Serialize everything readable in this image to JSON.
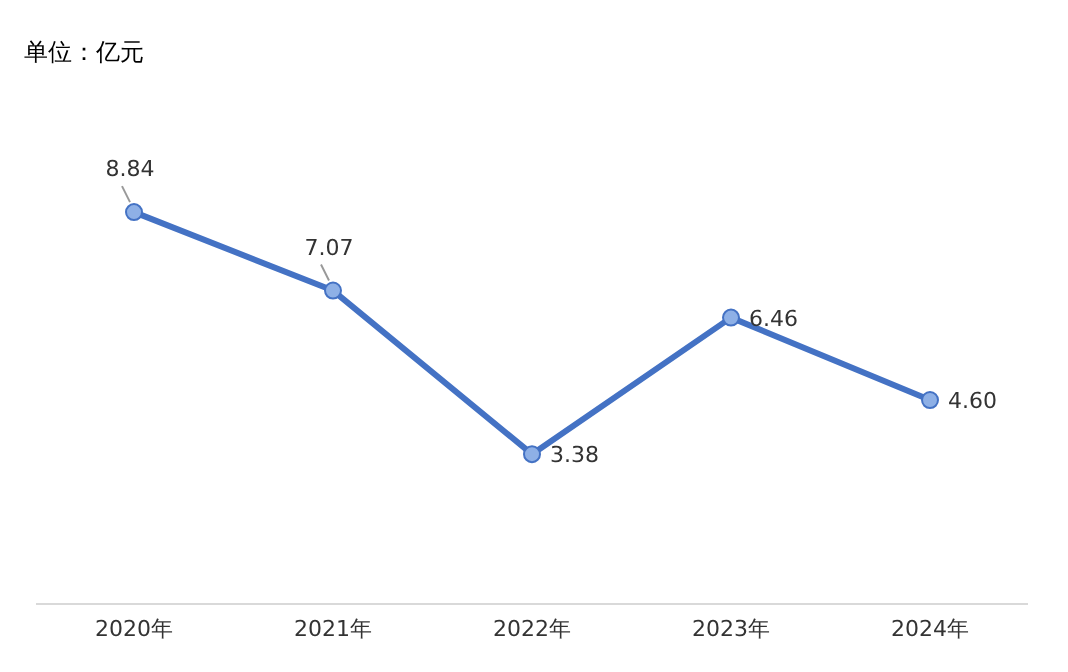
{
  "chart_data": {
    "type": "line",
    "annotations": [
      "单位：亿元"
    ],
    "categories": [
      "2020年",
      "2021年",
      "2022年",
      "2023年",
      "2024年"
    ],
    "series": [
      {
        "color": "#4472c4",
        "values": [
          8.84,
          7.07,
          3.38,
          6.46,
          4.6
        ],
        "value_labels": [
          "8.84",
          "7.07",
          "3.38",
          "6.46",
          "4.60"
        ]
      }
    ],
    "tick_labels": "x",
    "grid": false,
    "legend": false,
    "marker": "circle",
    "line_style": "solid"
  }
}
